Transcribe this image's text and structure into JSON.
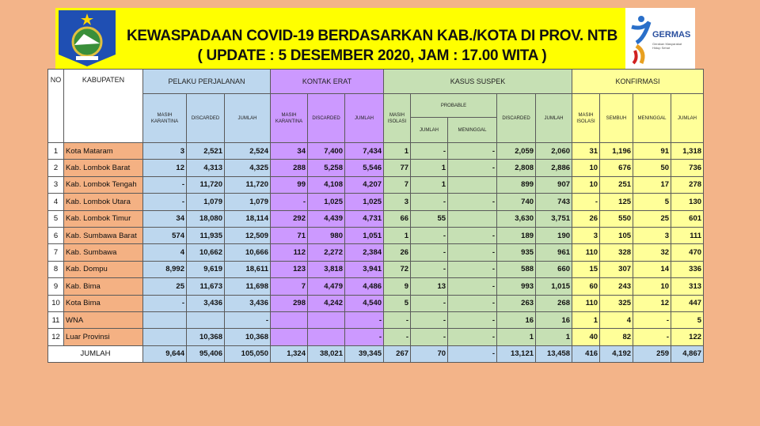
{
  "header": {
    "title_line1": "KEWASPADAAN COVID-19 BERDASARKAN KAB./KOTA DI PROV. NTB",
    "title_line2": "( UPDATE : 5 DESEMBER  2020, JAM : 17.00 WITA )",
    "logo_left": "ntb-province-emblem",
    "logo_right": {
      "name": "GERMAS",
      "tagline": "Gerakan Masyarakat Hidup Sehat"
    }
  },
  "colors": {
    "background": "#f3b489",
    "banner": "#ffff00",
    "pelaku": "#bdd7ee",
    "kontak": "#cc99ff",
    "suspek": "#c6e0b4",
    "konfirmasi": "#ffff99",
    "kabupaten": "#f4b183"
  },
  "table": {
    "headers": {
      "no": "NO",
      "kabupaten": "KABUPATEN",
      "pelaku": "PELAKU PERJALANAN",
      "kontak": "KONTAK ERAT",
      "suspek": "KASUS SUSPEK",
      "konfirmasi": "KONFIRMASI",
      "probable": "PROBABLE",
      "pp_cols": [
        "MASIH KARANTINA",
        "DISCARDED",
        "JUMLAH"
      ],
      "ke_cols": [
        "MASIH KARANTINA",
        "DISCARDED",
        "JUMLAH"
      ],
      "ks_masih": "MASIH ISOLASI",
      "prob_cols": [
        "JUMLAH",
        "MENINGGAL"
      ],
      "ks_cols": [
        "DISCARDED",
        "JUMLAH"
      ],
      "kf_cols": [
        "MASIH ISOLASI",
        "SEMBUH",
        "MENINGGAL",
        "JUMLAH"
      ]
    },
    "rows": [
      {
        "no": "1",
        "kab": "Kota Mataram",
        "v": [
          "3",
          "2,521",
          "2,524",
          "34",
          "7,400",
          "7,434",
          "1",
          "-",
          "-",
          "2,059",
          "2,060",
          "31",
          "1,196",
          "91",
          "1,318"
        ]
      },
      {
        "no": "2",
        "kab": "Kab. Lombok Barat",
        "v": [
          "12",
          "4,313",
          "4,325",
          "288",
          "5,258",
          "5,546",
          "77",
          "1",
          "-",
          "2,808",
          "2,886",
          "10",
          "676",
          "50",
          "736"
        ]
      },
      {
        "no": "3",
        "kab": "Kab. Lombok Tengah",
        "v": [
          "-",
          "11,720",
          "11,720",
          "99",
          "4,108",
          "4,207",
          "7",
          "1",
          "",
          "899",
          "907",
          "10",
          "251",
          "17",
          "278"
        ]
      },
      {
        "no": "4",
        "kab": "Kab. Lombok  Utara",
        "v": [
          "-",
          "1,079",
          "1,079",
          "-",
          "1,025",
          "1,025",
          "3",
          "-",
          "-",
          "740",
          "743",
          "-",
          "125",
          "5",
          "130"
        ]
      },
      {
        "no": "5",
        "kab": "Kab. Lombok Timur",
        "v": [
          "34",
          "18,080",
          "18,114",
          "292",
          "4,439",
          "4,731",
          "66",
          "55",
          "",
          "3,630",
          "3,751",
          "26",
          "550",
          "25",
          "601"
        ]
      },
      {
        "no": "6",
        "kab": "Kab. Sumbawa Barat",
        "v": [
          "574",
          "11,935",
          "12,509",
          "71",
          "980",
          "1,051",
          "1",
          "-",
          "-",
          "189",
          "190",
          "3",
          "105",
          "3",
          "111"
        ]
      },
      {
        "no": "7",
        "kab": "Kab. Sumbawa",
        "v": [
          "4",
          "10,662",
          "10,666",
          "112",
          "2,272",
          "2,384",
          "26",
          "-",
          "-",
          "935",
          "961",
          "110",
          "328",
          "32",
          "470"
        ]
      },
      {
        "no": "8",
        "kab": "Kab. Dompu",
        "v": [
          "8,992",
          "9,619",
          "18,611",
          "123",
          "3,818",
          "3,941",
          "72",
          "-",
          "-",
          "588",
          "660",
          "15",
          "307",
          "14",
          "336"
        ]
      },
      {
        "no": "9",
        "kab": "Kab. Bima",
        "v": [
          "25",
          "11,673",
          "11,698",
          "7",
          "4,479",
          "4,486",
          "9",
          "13",
          "-",
          "993",
          "1,015",
          "60",
          "243",
          "10",
          "313"
        ]
      },
      {
        "no": "10",
        "kab": "Kota Bima",
        "v": [
          "-",
          "3,436",
          "3,436",
          "298",
          "4,242",
          "4,540",
          "5",
          "-",
          "-",
          "263",
          "268",
          "110",
          "325",
          "12",
          "447"
        ]
      },
      {
        "no": "11",
        "kab": "WNA",
        "v": [
          "",
          "",
          "-",
          "",
          "",
          "-",
          "-",
          "-",
          "-",
          "16",
          "16",
          "1",
          "4",
          "-",
          "5"
        ]
      },
      {
        "no": "12",
        "kab": "Luar Provinsi",
        "v": [
          "",
          "10,368",
          "10,368",
          "",
          "",
          "-",
          "-",
          "-",
          "-",
          "1",
          "1",
          "40",
          "82",
          "-",
          "122"
        ]
      }
    ],
    "total": {
      "label": "JUMLAH",
      "v": [
        "9,644",
        "95,406",
        "105,050",
        "1,324",
        "38,021",
        "39,345",
        "267",
        "70",
        "-",
        "13,121",
        "13,458",
        "416",
        "4,192",
        "259",
        "4,867"
      ]
    }
  }
}
